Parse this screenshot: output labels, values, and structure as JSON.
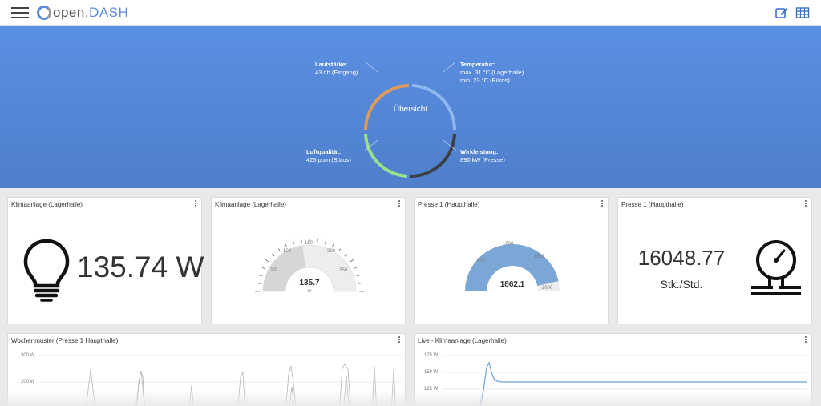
{
  "header": {
    "menu_icon": "hamburger-icon",
    "logo_prefix": "open.",
    "logo_suffix": "DASH",
    "edit_icon": "edit-icon",
    "grid_icon": "table-grid-icon"
  },
  "overview": {
    "center_label": "Übersicht",
    "segments": [
      {
        "title": "Lautstärke:",
        "lines": [
          "43 db (Eingang)"
        ],
        "color": "#e09a5a"
      },
      {
        "title": "Temperatur:",
        "lines": [
          "max. 31 °C (Lagerhalle)",
          "min. 23 °C (Büros)"
        ],
        "color": "#8fb6ee"
      },
      {
        "title": "Wirkleistung:",
        "lines": [
          "890 kW (Presse)"
        ],
        "color": "#3c3f44"
      },
      {
        "title": "Luftqualität:",
        "lines": [
          "425 ppm (Büros)"
        ],
        "color": "#9be08a"
      }
    ]
  },
  "cards": {
    "c1": {
      "title": "Klimaanlage (Lagerhalle)",
      "value": "135.74 W",
      "icon": "lightbulb-icon"
    },
    "c2": {
      "title": "Klimaanlage (Lagerhalle)",
      "value": "135.7",
      "unit": "W",
      "ticks": [
        "50",
        "100",
        "150",
        "200",
        "250"
      ],
      "fraction": 0.45
    },
    "c3": {
      "title": "Presse 1 (Haupthalle)",
      "value": "1862.1",
      "ticks": [
        "500",
        "1000",
        "1500",
        "2000"
      ],
      "fraction": 0.93
    },
    "c4": {
      "title": "Presse 1 (Haupthalle)",
      "value": "16048.77",
      "unit": "Stk./Std.",
      "icon": "pressure-gauge-icon"
    }
  },
  "charts": {
    "weekly": {
      "title": "Wochenmuster (Presse 1 Haupthalle)",
      "y_ticks": [
        "300 W",
        "200 W"
      ]
    },
    "live": {
      "title": "Live - Klimaanlage (Lagerhalle)",
      "y_ticks": [
        "175 W",
        "150 W",
        "125 W"
      ]
    }
  }
}
